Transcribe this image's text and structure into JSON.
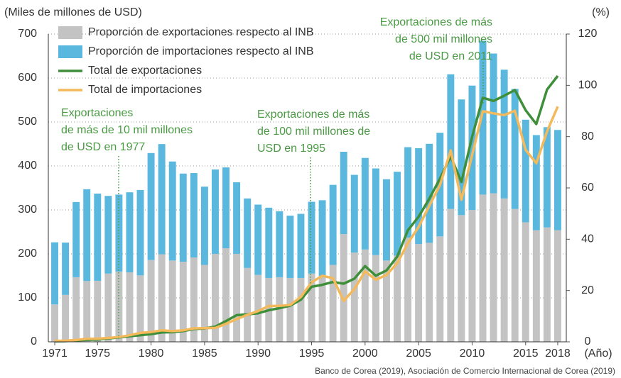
{
  "chart_data": {
    "type": "combo",
    "y_label": "(Miles de millones de USD)",
    "y2_label": "(%)",
    "x_label": "(Año)",
    "source": "Banco de Corea (2019), Asociación de Comercio Internacional de Corea (2019)",
    "x": [
      1971,
      1972,
      1973,
      1974,
      1975,
      1976,
      1977,
      1978,
      1979,
      1980,
      1981,
      1982,
      1983,
      1984,
      1985,
      1986,
      1987,
      1988,
      1989,
      1990,
      1991,
      1992,
      1993,
      1994,
      1995,
      1996,
      1997,
      1998,
      1999,
      2000,
      2001,
      2002,
      2003,
      2004,
      2005,
      2006,
      2007,
      2008,
      2009,
      2010,
      2011,
      2012,
      2013,
      2014,
      2015,
      2016,
      2017,
      2018
    ],
    "xlim": [
      1970.4,
      2018.8
    ],
    "xticks": [
      1971,
      1975,
      1980,
      1985,
      1990,
      1995,
      2000,
      2005,
      2010,
      2015,
      2018
    ],
    "ylim": [
      0,
      700
    ],
    "yticks": [
      0,
      100,
      200,
      300,
      400,
      500,
      600,
      700
    ],
    "y2lim": [
      0,
      120
    ],
    "y2ticks": [
      0,
      20,
      40,
      60,
      80,
      100,
      120
    ],
    "grid": true,
    "legend": "upper left",
    "series": [
      {
        "name": "Proporción de exportaciones respecto al INB",
        "type": "bar",
        "axis": "y2",
        "color": "#c3c3c3",
        "values": [
          14.6,
          18.3,
          25.2,
          23.7,
          23.8,
          26.6,
          27.4,
          27.1,
          25.9,
          31.9,
          34.1,
          31.7,
          31.2,
          32.9,
          30.0,
          34.3,
          36.5,
          34.3,
          28.8,
          26.1,
          24.9,
          25.2,
          24.9,
          24.9,
          26.6,
          25.7,
          30.0,
          42.0,
          34.8,
          36.0,
          33.8,
          31.7,
          33.6,
          40.6,
          38.1,
          38.6,
          41.1,
          51.8,
          49.4,
          51.4,
          57.4,
          57.9,
          55.9,
          51.8,
          46.6,
          43.5,
          44.6,
          43.5
        ]
      },
      {
        "name": "Proporción de importaciones respecto al INB",
        "type": "bar",
        "axis": "y2",
        "color": "#5ab8df",
        "values": [
          24.2,
          20.4,
          29.3,
          35.8,
          34.0,
          30.3,
          30.0,
          31.2,
          33.3,
          41.7,
          43.0,
          38.6,
          34.4,
          32.9,
          30.5,
          32.9,
          31.5,
          27.9,
          27.1,
          27.4,
          27.4,
          25.7,
          24.3,
          25.0,
          28.0,
          29.5,
          31.2,
          32.1,
          30.3,
          35.7,
          33.8,
          31.7,
          32.7,
          35.3,
          37.4,
          38.6,
          40.4,
          52.5,
          45.1,
          48.5,
          60.0,
          54.5,
          50.2,
          46.8,
          40.0,
          37.1,
          39.1,
          39.1
        ]
      },
      {
        "name": "Total de exportaciones",
        "type": "line",
        "color": "#3f8f3a",
        "values": [
          1.1,
          1.6,
          3.2,
          4.5,
          5.1,
          7.7,
          10.0,
          12.7,
          15.1,
          17.5,
          21.3,
          21.9,
          24.4,
          29.2,
          30.3,
          34.7,
          47.3,
          60.7,
          62.4,
          65.0,
          71.9,
          76.6,
          82.2,
          96.0,
          125.1,
          129.7,
          136.2,
          132.3,
          143.7,
          172.3,
          150.4,
          162.5,
          193.8,
          253.8,
          284.4,
          325.5,
          371.5,
          422.0,
          363.5,
          466.4,
          555.2,
          547.9,
          559.6,
          572.7,
          526.8,
          495.4,
          573.7,
          604.9
        ]
      },
      {
        "name": "Total de importaciones",
        "type": "line",
        "color": "#f4b95a",
        "values": [
          2.4,
          2.5,
          4.2,
          6.9,
          7.3,
          8.8,
          10.8,
          15.0,
          20.3,
          22.3,
          26.1,
          24.3,
          26.2,
          30.6,
          31.1,
          31.6,
          41.0,
          51.8,
          61.5,
          69.8,
          81.5,
          81.8,
          83.8,
          102.3,
          135.1,
          150.3,
          144.6,
          93.3,
          119.8,
          160.5,
          141.1,
          152.1,
          178.8,
          224.5,
          261.2,
          309.4,
          356.8,
          435.3,
          323.1,
          425.2,
          524.4,
          519.6,
          515.6,
          525.5,
          436.5,
          406.2,
          478.5,
          535.2
        ]
      }
    ],
    "annotations": [
      [
        "Exportaciones",
        "de más de 10 mil millones",
        "de USD en 1977"
      ],
      [
        "Exportaciones de más",
        "de 100 mil millones de",
        "USD en 1995"
      ],
      [
        "Exportaciones de más",
        "de 500 mil millones",
        "de USD en 2011"
      ]
    ]
  }
}
